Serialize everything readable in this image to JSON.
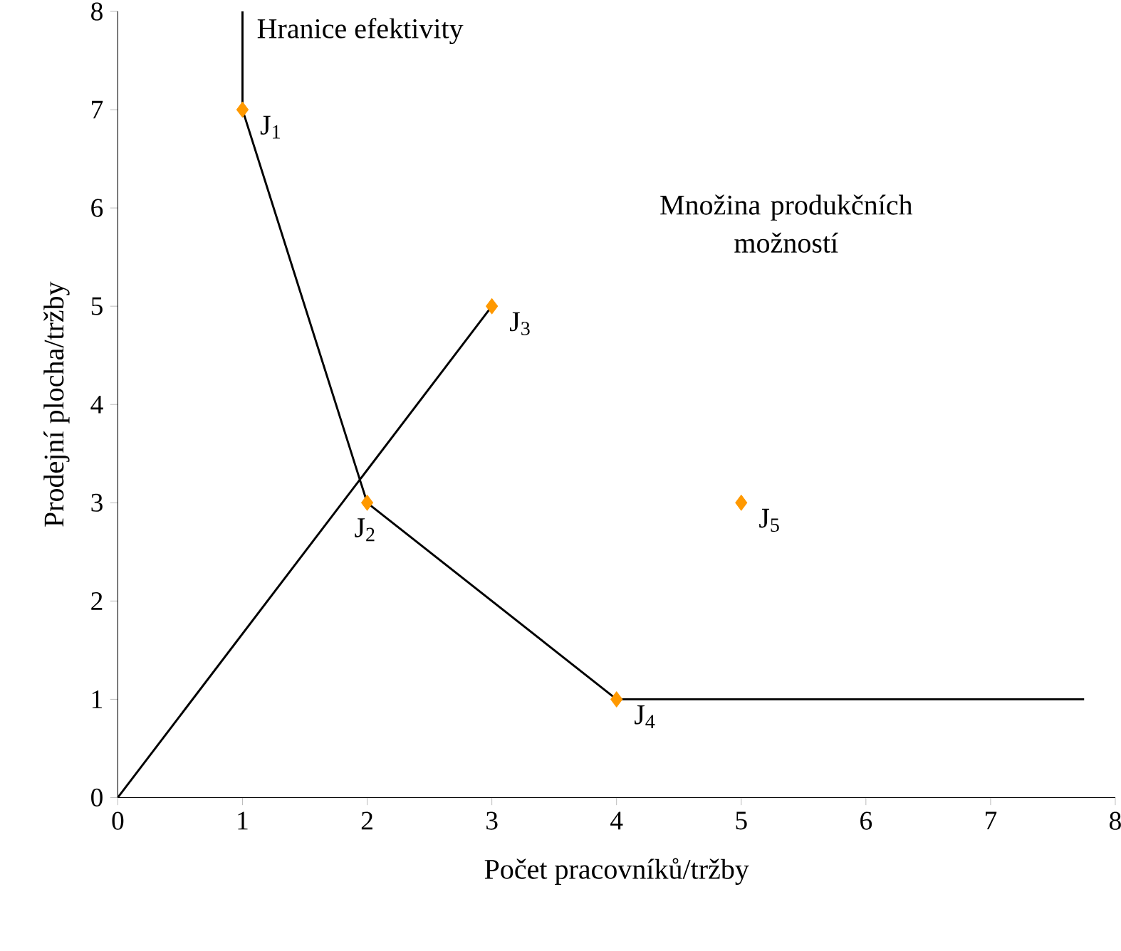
{
  "chart_data": {
    "type": "scatter",
    "xlabel": "Počet pracovníků/tržby",
    "ylabel": "Prodejní plocha/tržby",
    "xlim": [
      0,
      8
    ],
    "ylim": [
      0,
      8
    ],
    "xticks": [
      0,
      1,
      2,
      3,
      4,
      5,
      6,
      7,
      8
    ],
    "yticks": [
      0,
      1,
      2,
      3,
      4,
      5,
      6,
      7,
      8
    ],
    "grid": false,
    "marker": "diamond",
    "series": [
      {
        "color": "#ff9900",
        "x": [
          1,
          2,
          3,
          4,
          5
        ],
        "values": [
          7,
          3,
          5,
          1,
          3
        ]
      },
      {
        "type": "line",
        "color": "#000000",
        "marker": "none",
        "line_style": "solid",
        "x": [
          1,
          1,
          2,
          4,
          7.75
        ],
        "values": [
          8,
          7,
          3,
          1,
          1
        ]
      },
      {
        "type": "line",
        "color": "#000000",
        "marker": "none",
        "line_style": "solid",
        "x": [
          0,
          3
        ],
        "values": [
          0,
          5
        ]
      }
    ],
    "annotations": [
      {
        "text": "J$_{1}$",
        "x": 1,
        "y": 7
      },
      {
        "text": "J$_{2}$",
        "x": 2,
        "y": 3
      },
      {
        "text": "J$_{3}$",
        "x": 3,
        "y": 5
      },
      {
        "text": "J$_{4}$",
        "x": 4,
        "y": 1
      },
      {
        "text": "J$_{5}$",
        "x": 5,
        "y": 3
      },
      {
        "text": "Hranice efektivity",
        "x": 1,
        "y": 7.8
      },
      "Množina produkčních možností"
    ]
  }
}
